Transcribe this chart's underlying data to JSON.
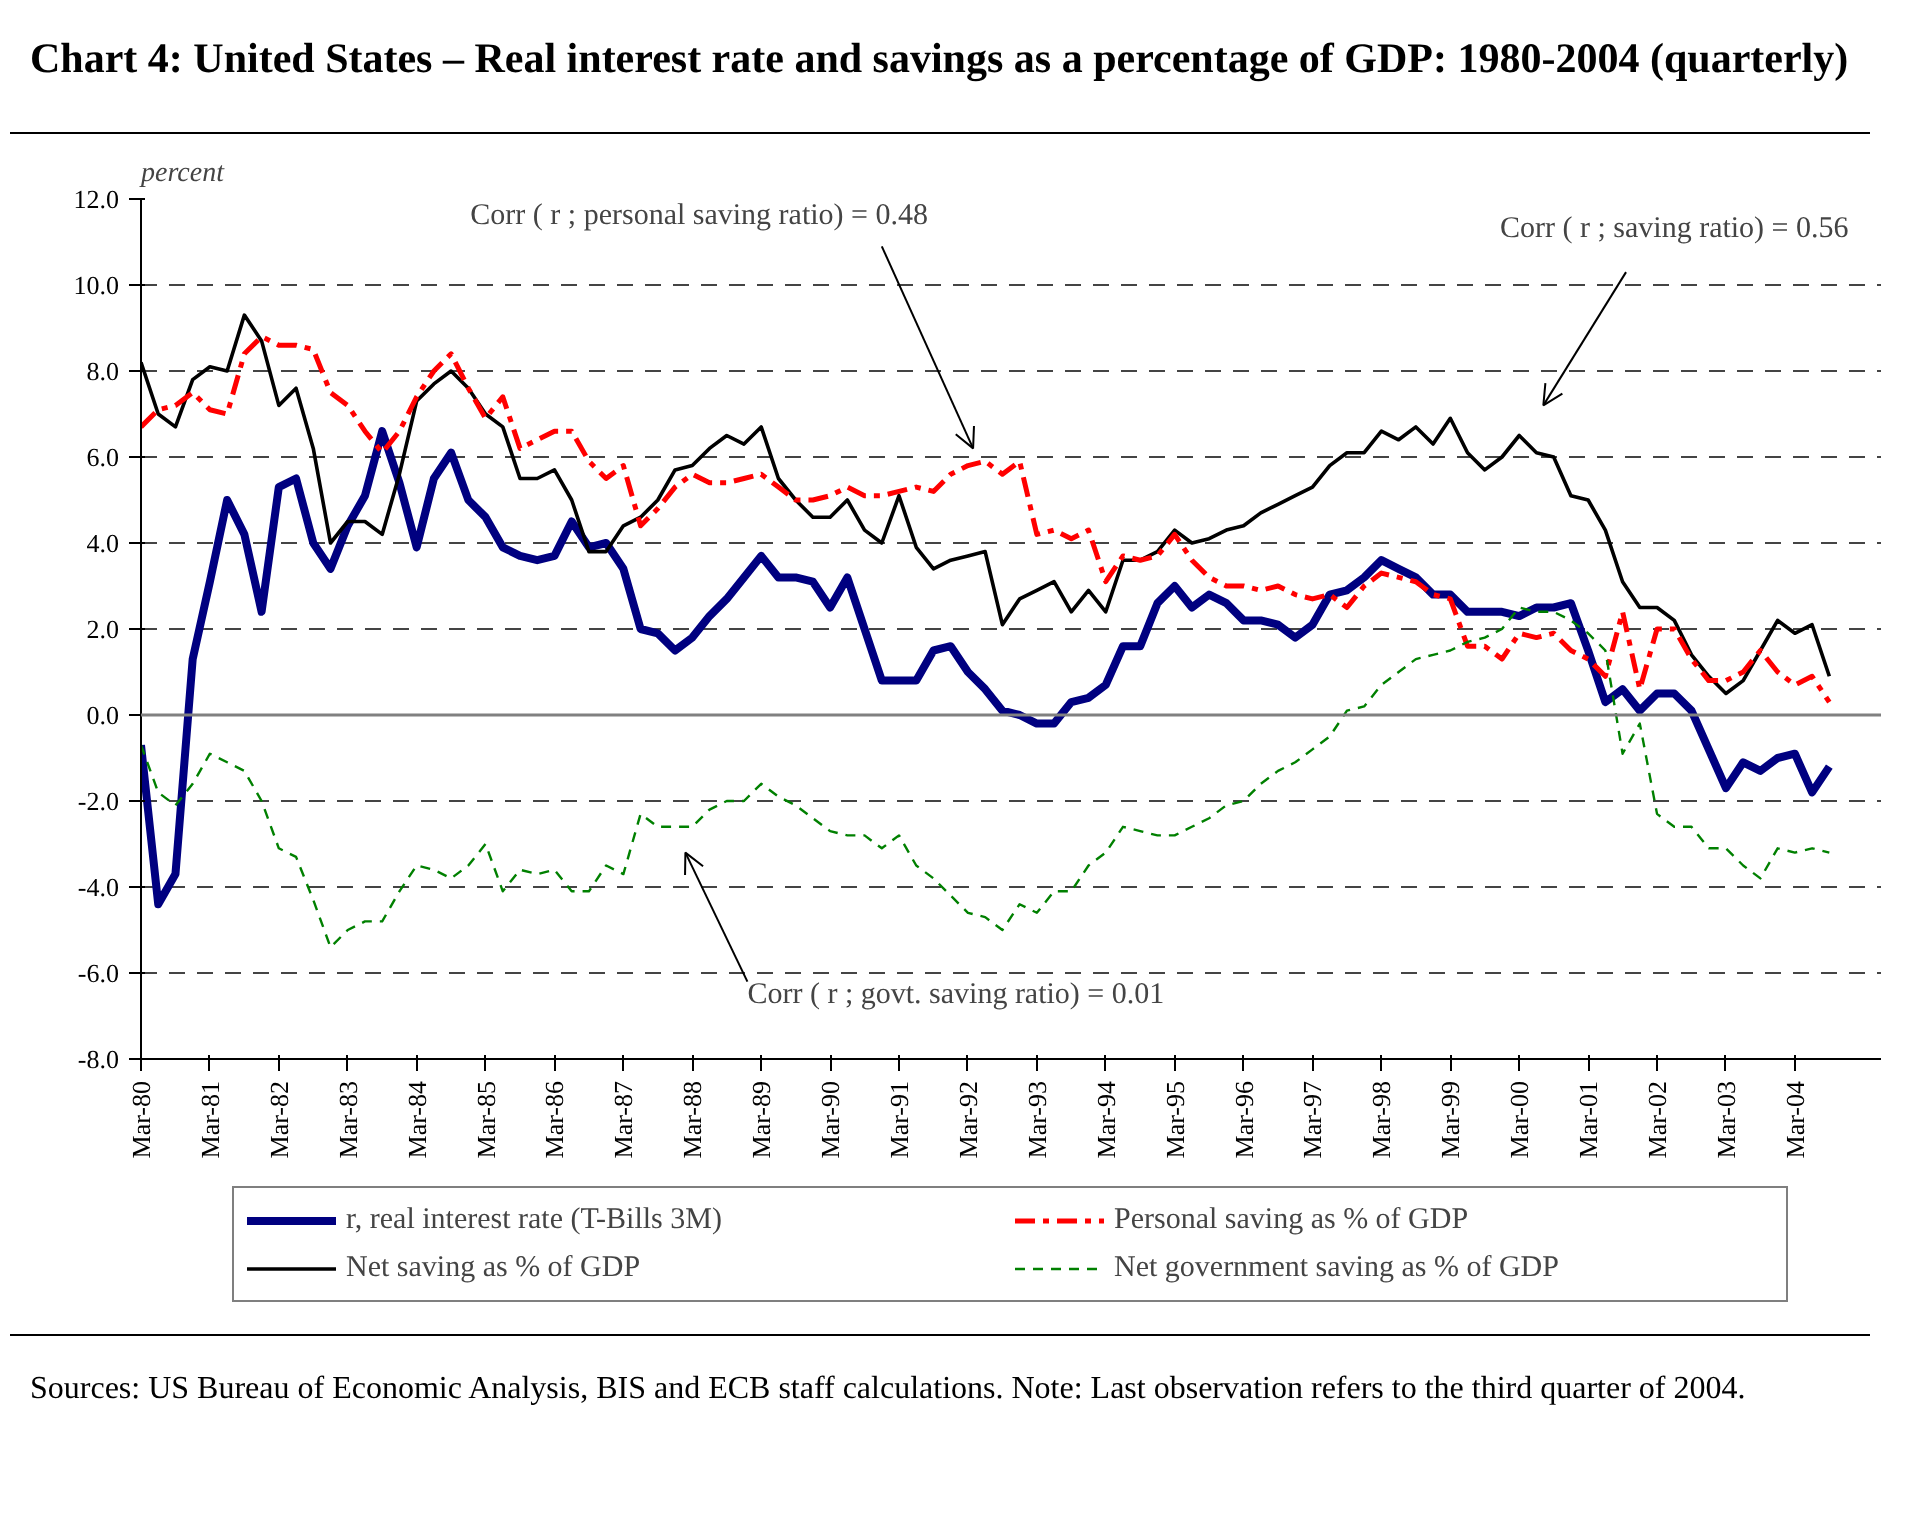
{
  "chart_data": {
    "type": "line",
    "title": "Chart 4: United States – Real interest rate and savings as a percentage of GDP: 1980-2004 (quarterly)",
    "ylabel": "percent",
    "categories": [
      "Mar-80",
      null,
      null,
      null,
      "Mar-81",
      null,
      null,
      null,
      "Mar-82",
      null,
      null,
      null,
      "Mar-83",
      null,
      null,
      null,
      "Mar-84",
      null,
      null,
      null,
      "Mar-85",
      null,
      null,
      null,
      "Mar-86",
      null,
      null,
      null,
      "Mar-87",
      null,
      null,
      null,
      "Mar-88",
      null,
      null,
      null,
      "Mar-89",
      null,
      null,
      null,
      "Mar-90",
      null,
      null,
      null,
      "Mar-91",
      null,
      null,
      null,
      "Mar-92",
      null,
      null,
      null,
      "Mar-93",
      null,
      null,
      null,
      "Mar-94",
      null,
      null,
      null,
      "Mar-95",
      null,
      null,
      null,
      "Mar-96",
      null,
      null,
      null,
      "Mar-97",
      null,
      null,
      null,
      "Mar-98",
      null,
      null,
      null,
      "Mar-99",
      null,
      null,
      null,
      "Mar-00",
      null,
      null,
      null,
      "Mar-01",
      null,
      null,
      null,
      "Mar-02",
      null,
      null,
      null,
      "Mar-03",
      null,
      null,
      null,
      "Mar-04",
      null,
      null
    ],
    "series": [
      {
        "name": "r, real interest rate (T-Bills 3M)",
        "color": "#000080",
        "line_style": "solid",
        "values": [
          -0.7,
          -4.4,
          -3.7,
          1.3,
          3.1,
          5.0,
          4.2,
          2.4,
          5.3,
          5.5,
          4.0,
          3.4,
          4.4,
          5.1,
          6.6,
          5.4,
          3.9,
          5.5,
          6.1,
          5.0,
          4.6,
          3.9,
          3.7,
          3.6,
          3.7,
          4.5,
          3.9,
          4.0,
          3.4,
          2.0,
          1.9,
          1.5,
          1.8,
          2.3,
          2.7,
          3.2,
          3.7,
          3.2,
          3.2,
          3.1,
          2.5,
          3.2,
          2.0,
          0.8,
          0.8,
          0.8,
          1.5,
          1.6,
          1.0,
          0.6,
          0.1,
          0.0,
          -0.2,
          -0.2,
          0.3,
          0.4,
          0.7,
          1.6,
          1.6,
          2.6,
          3.0,
          2.5,
          2.8,
          2.6,
          2.2,
          2.2,
          2.1,
          1.8,
          2.1,
          2.8,
          2.9,
          3.2,
          3.6,
          3.4,
          3.2,
          2.8,
          2.8,
          2.4,
          2.4,
          2.4,
          2.3,
          2.5,
          2.5,
          2.6,
          1.5,
          0.3,
          0.6,
          0.1,
          0.5,
          0.5,
          0.1,
          -0.8,
          -1.7,
          -1.1,
          -1.3,
          -1.0,
          -0.9,
          -1.8,
          -1.2
        ]
      },
      {
        "name": "Net saving as % of GDP",
        "color": "#000000",
        "line_style": "solid",
        "values": [
          8.2,
          7.0,
          6.7,
          7.8,
          8.1,
          8.0,
          9.3,
          8.7,
          7.2,
          7.6,
          6.2,
          4.0,
          4.5,
          4.5,
          4.2,
          5.6,
          7.3,
          7.7,
          8.0,
          7.6,
          7.0,
          6.7,
          5.5,
          5.5,
          5.7,
          5.0,
          3.8,
          3.8,
          4.4,
          4.6,
          5.0,
          5.7,
          5.8,
          6.2,
          6.5,
          6.3,
          6.7,
          5.5,
          5.0,
          4.6,
          4.6,
          5.0,
          4.3,
          4.0,
          5.1,
          3.9,
          3.4,
          3.6,
          3.7,
          3.8,
          2.1,
          2.7,
          2.9,
          3.1,
          2.4,
          2.9,
          2.4,
          3.6,
          3.6,
          3.8,
          4.3,
          4.0,
          4.1,
          4.3,
          4.4,
          4.7,
          4.9,
          5.1,
          5.3,
          5.8,
          6.1,
          6.1,
          6.6,
          6.4,
          6.7,
          6.3,
          6.9,
          6.1,
          5.7,
          6.0,
          6.5,
          6.1,
          6.0,
          5.1,
          5.0,
          4.3,
          3.1,
          2.5,
          2.5,
          2.2,
          1.4,
          0.9,
          0.5,
          0.8,
          1.5,
          2.2,
          1.9,
          2.1,
          0.9
        ]
      },
      {
        "name": "Personal saving as % of GDP",
        "color": "#ff0000",
        "line_style": "dashed",
        "values": [
          6.7,
          7.1,
          7.2,
          7.5,
          7.1,
          7.0,
          8.4,
          8.8,
          8.6,
          8.6,
          8.5,
          7.5,
          7.2,
          6.6,
          6.1,
          6.6,
          7.4,
          8.0,
          8.4,
          7.6,
          6.9,
          7.4,
          6.2,
          6.4,
          6.6,
          6.6,
          5.9,
          5.5,
          5.8,
          4.4,
          4.8,
          5.3,
          5.6,
          5.4,
          5.4,
          5.5,
          5.6,
          5.3,
          5.0,
          5.0,
          5.1,
          5.3,
          5.1,
          5.1,
          5.2,
          5.3,
          5.2,
          5.6,
          5.8,
          5.9,
          5.6,
          5.9,
          4.2,
          4.3,
          4.1,
          4.3,
          3.1,
          3.7,
          3.6,
          3.7,
          4.2,
          3.6,
          3.2,
          3.0,
          3.0,
          2.9,
          3.0,
          2.8,
          2.7,
          2.8,
          2.5,
          3.0,
          3.3,
          3.2,
          3.1,
          2.8,
          2.7,
          1.6,
          1.6,
          1.3,
          1.9,
          1.8,
          1.9,
          1.5,
          1.3,
          0.9,
          2.4,
          0.6,
          2.0,
          2.0,
          1.3,
          0.8,
          0.8,
          1.0,
          1.5,
          1.0,
          0.7,
          0.9,
          0.3
        ]
      },
      {
        "name": "Net government saving as % of GDP",
        "color": "#008000",
        "line_style": "dashed",
        "values": [
          -0.7,
          -1.8,
          -2.1,
          -1.6,
          -0.9,
          -1.1,
          -1.3,
          -2.0,
          -3.1,
          -3.3,
          -4.3,
          -5.4,
          -5.0,
          -4.8,
          -4.8,
          -4.1,
          -3.5,
          -3.6,
          -3.8,
          -3.5,
          -3.0,
          -4.1,
          -3.6,
          -3.7,
          -3.6,
          -4.1,
          -4.1,
          -3.5,
          -3.7,
          -2.3,
          -2.6,
          -2.6,
          -2.6,
          -2.2,
          -2.0,
          -2.0,
          -1.6,
          -1.9,
          -2.1,
          -2.4,
          -2.7,
          -2.8,
          -2.8,
          -3.1,
          -2.8,
          -3.5,
          -3.8,
          -4.2,
          -4.6,
          -4.7,
          -5.0,
          -4.4,
          -4.6,
          -4.1,
          -4.1,
          -3.5,
          -3.2,
          -2.6,
          -2.7,
          -2.8,
          -2.8,
          -2.6,
          -2.4,
          -2.1,
          -2.0,
          -1.6,
          -1.3,
          -1.1,
          -0.8,
          -0.5,
          0.1,
          0.2,
          0.7,
          1.0,
          1.3,
          1.4,
          1.5,
          1.7,
          1.8,
          2.0,
          2.5,
          2.4,
          2.4,
          2.2,
          1.9,
          1.5,
          -0.9,
          -0.2,
          -2.3,
          -2.6,
          -2.6,
          -3.1,
          -3.1,
          -3.5,
          -3.8,
          -3.1,
          -3.2,
          -3.1,
          -3.2
        ]
      }
    ],
    "ylim": [
      -8,
      12
    ],
    "yticks": [
      {
        "value": -8,
        "label": "-8.0"
      },
      {
        "value": -6,
        "label": "-6.0"
      },
      {
        "value": -4,
        "label": "-4.0"
      },
      {
        "value": -2,
        "label": "-2.0"
      },
      {
        "value": 0,
        "label": "0.0"
      },
      {
        "value": 2,
        "label": "2.0"
      },
      {
        "value": 4,
        "label": "4.0"
      },
      {
        "value": 6,
        "label": "6.0"
      },
      {
        "value": 8,
        "label": "8.0"
      },
      {
        "value": 10,
        "label": "10.0"
      },
      {
        "value": 12,
        "label": "12.0"
      }
    ],
    "grid": "y",
    "ref_lines": [
      {
        "axis": "y",
        "value": 0,
        "color": "#808080"
      }
    ],
    "legend": "bottom",
    "annotations": [
      "Corr ( r ; personal saving ratio) = 0.48",
      "Corr ( r ; saving ratio) = 0.56",
      "Corr ( r ; govt. saving ratio) = 0.01",
      "Sources: US Bureau of Economic Analysis, BIS and ECB staff calculations. Note: Last observation refers to the third quarter of 2004."
    ]
  }
}
